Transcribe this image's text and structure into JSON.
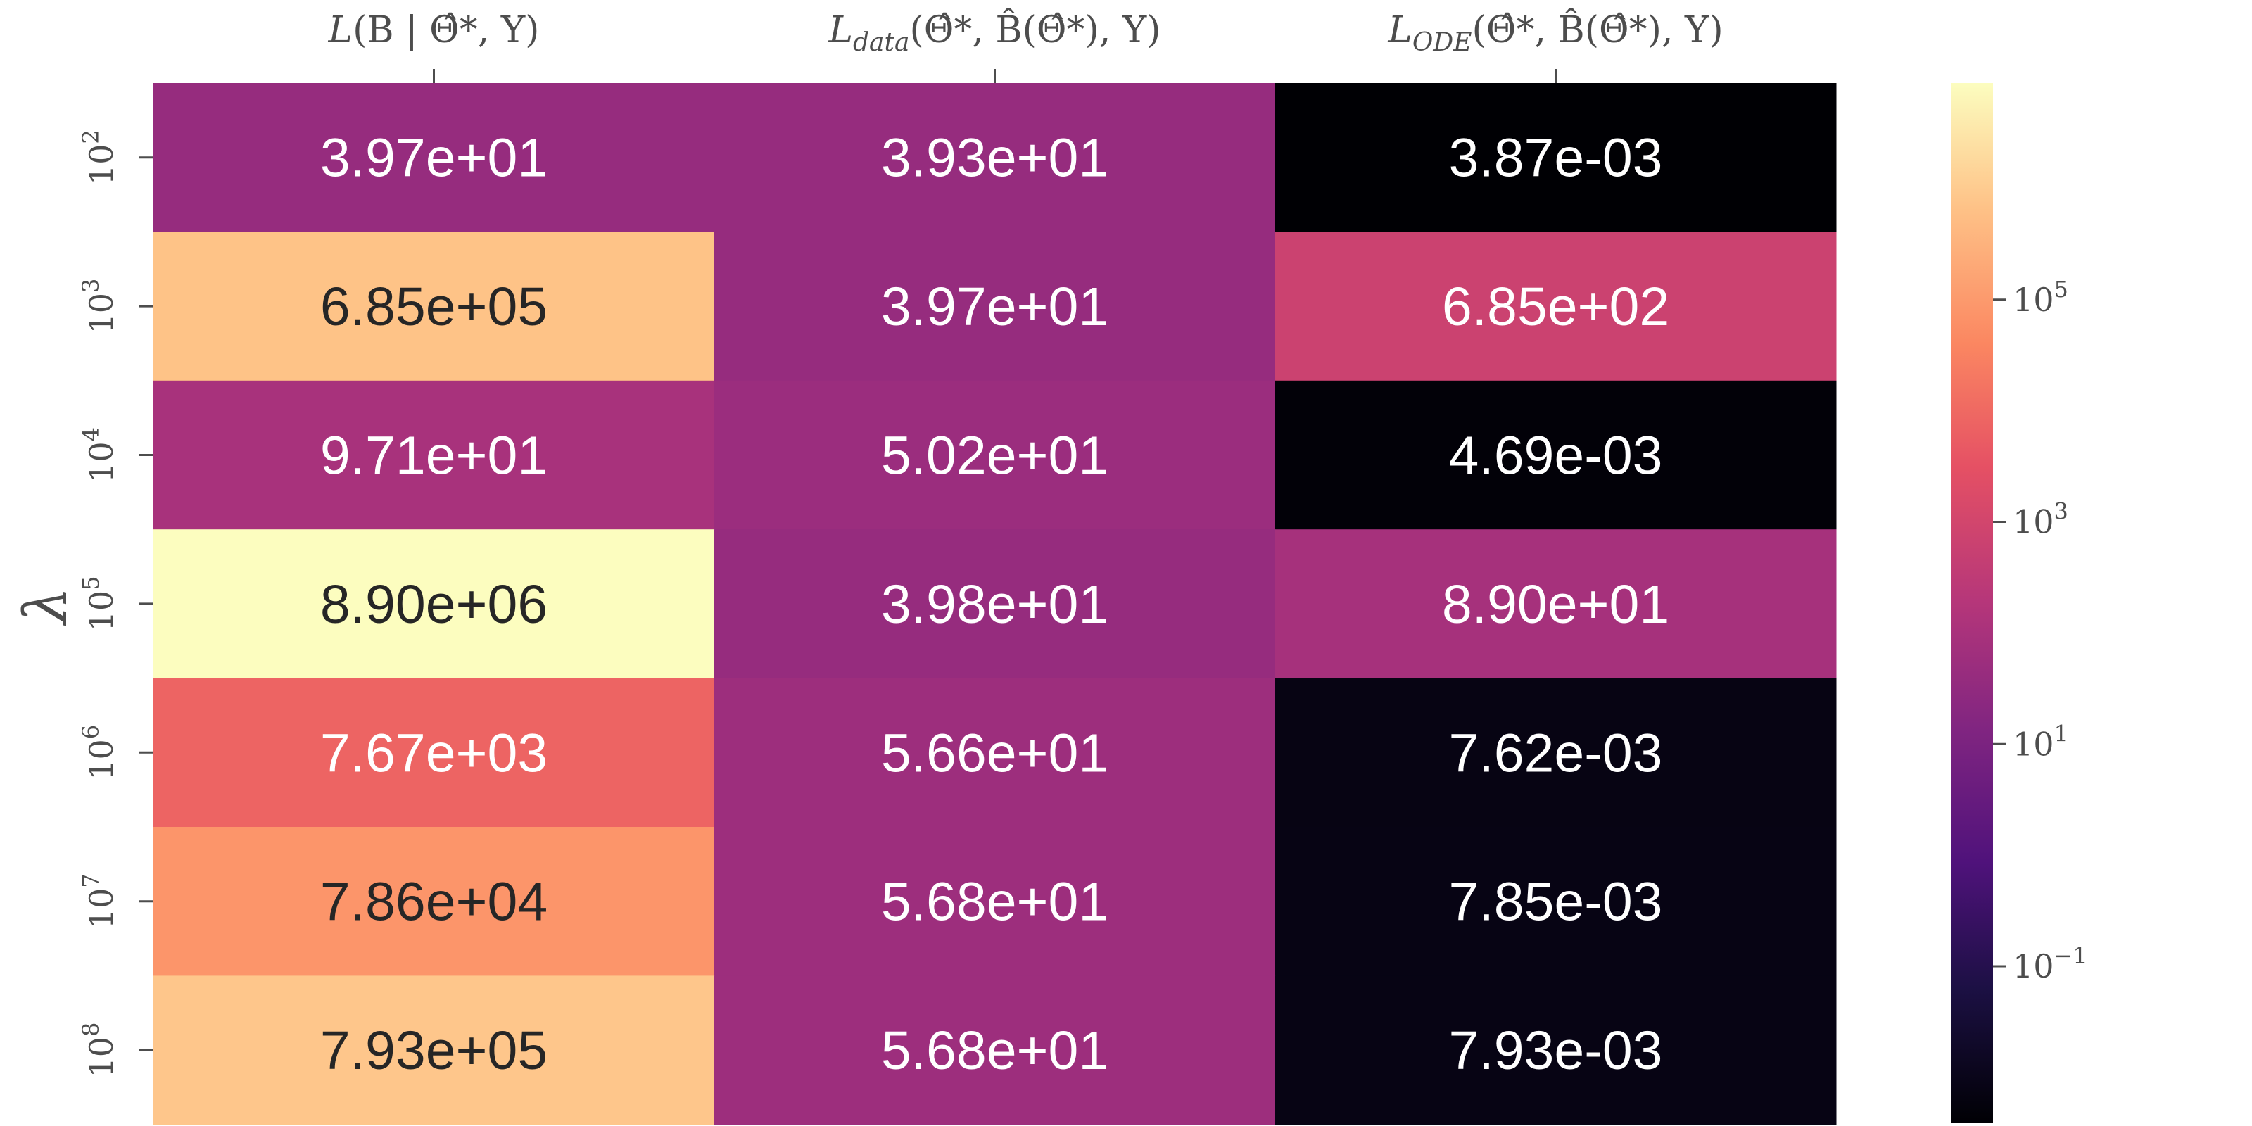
{
  "chart_data": {
    "type": "heatmap",
    "ylabel": "λ",
    "columns": [
      {
        "base": "L",
        "sub": "",
        "args": "(B | Θ̂*, Y)"
      },
      {
        "base": "L",
        "sub": "data",
        "args": "(Θ̂*, B̂(Θ̂*), Y)"
      },
      {
        "base": "L",
        "sub": "ODE",
        "args": "(Θ̂*, B̂(Θ̂*), Y)"
      }
    ],
    "rows": [
      {
        "base": "10",
        "exp": "2"
      },
      {
        "base": "10",
        "exp": "3"
      },
      {
        "base": "10",
        "exp": "4"
      },
      {
        "base": "10",
        "exp": "5"
      },
      {
        "base": "10",
        "exp": "6"
      },
      {
        "base": "10",
        "exp": "7"
      },
      {
        "base": "10",
        "exp": "8"
      }
    ],
    "values": [
      [
        39.7,
        39.3,
        0.00387
      ],
      [
        685000,
        39.7,
        685
      ],
      [
        97.1,
        50.2,
        0.00469
      ],
      [
        8900000,
        39.8,
        89.0
      ],
      [
        7670,
        56.6,
        0.00762
      ],
      [
        78600,
        56.8,
        0.00785
      ],
      [
        793000,
        56.8,
        0.00793
      ]
    ],
    "labels": [
      [
        "3.97e+01",
        "3.93e+01",
        "3.87e-03"
      ],
      [
        "6.85e+05",
        "3.97e+01",
        "6.85e+02"
      ],
      [
        "9.71e+01",
        "5.02e+01",
        "4.69e-03"
      ],
      [
        "8.90e+06",
        "3.98e+01",
        "8.90e+01"
      ],
      [
        "7.67e+03",
        "5.66e+01",
        "7.62e-03"
      ],
      [
        "7.86e+04",
        "5.68e+01",
        "7.85e-03"
      ],
      [
        "7.93e+05",
        "5.68e+01",
        "7.93e-03"
      ]
    ],
    "colormap": "magma",
    "scale": "log",
    "color_range": [
      0.00387,
      8900000
    ],
    "colorbar": {
      "ticks": [
        {
          "value": 0.1,
          "base": "10",
          "exp": "−1"
        },
        {
          "value": 10,
          "base": "10",
          "exp": "1"
        },
        {
          "value": 1000,
          "base": "10",
          "exp": "3"
        },
        {
          "value": 100000,
          "base": "10",
          "exp": "5"
        }
      ]
    },
    "column_labels_position": "top"
  }
}
